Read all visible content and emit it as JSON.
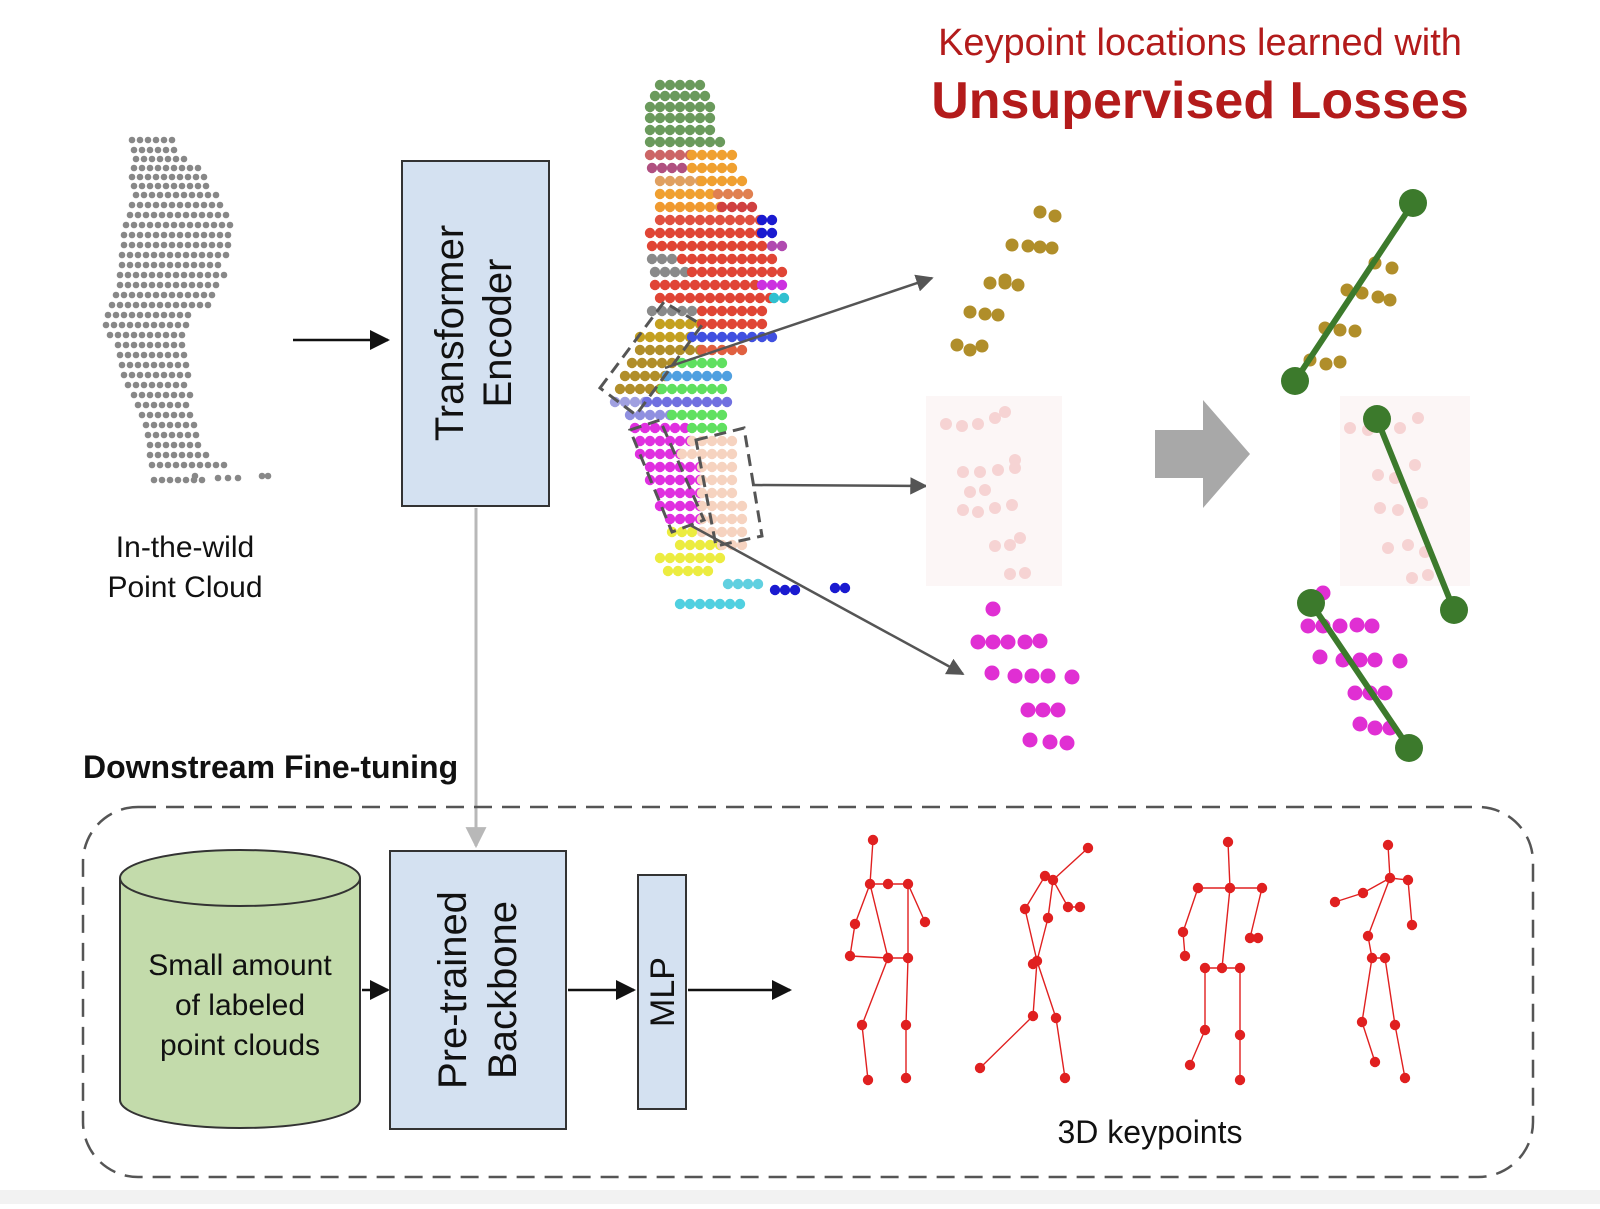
{
  "title": {
    "line1": "Keypoint locations learned with",
    "line2": "Unsupervised Losses",
    "color": "#b31b1b"
  },
  "input_label": {
    "line1": "In-the-wild",
    "line2": "Point Cloud"
  },
  "encoder": {
    "line1": "Transformer",
    "line2": "Encoder"
  },
  "section": {
    "title": "Downstream Fine-tuning"
  },
  "database": {
    "line1": "Small amount",
    "line2": "of labeled",
    "line3": "point clouds"
  },
  "backbone": {
    "line1": "Pre-trained",
    "line2": "Backbone"
  },
  "mlp": {
    "label": "MLP"
  },
  "output": {
    "label": "3D keypoints"
  },
  "colors": {
    "box_fill": "#d4e1f1",
    "db_fill": "#c3dbab",
    "point_gray": "#888888",
    "keypoint_green": "#3c7a2c",
    "skeleton_red": "#e02020",
    "olive": "#b08e2a",
    "pink_light": "#f6d3d3",
    "magenta": "#e02fd3"
  }
}
